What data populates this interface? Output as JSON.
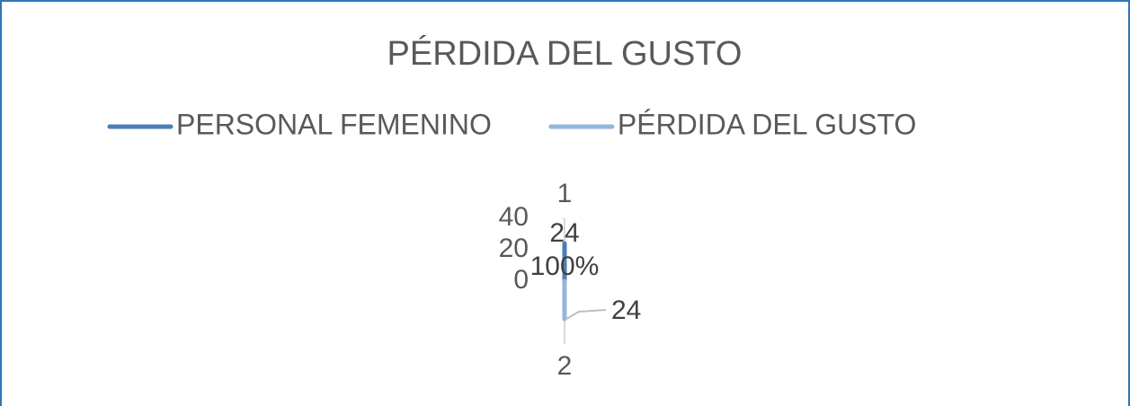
{
  "chart_data": {
    "type": "radar",
    "title": "PÉRDIDA DEL GUSTO",
    "categories": [
      "1",
      "2"
    ],
    "series": [
      {
        "name": "PERSONAL FEMENINO",
        "color": "#4a7fb8",
        "values": [
          24,
          null
        ]
      },
      {
        "name": "PÉRDIDA DEL GUSTO",
        "color": "#94b6dc",
        "values": [
          null,
          24
        ]
      }
    ],
    "annotations": [
      "100%"
    ],
    "ylim": [
      0,
      40
    ],
    "yticks": [
      0,
      20,
      40
    ],
    "legend": "top"
  }
}
